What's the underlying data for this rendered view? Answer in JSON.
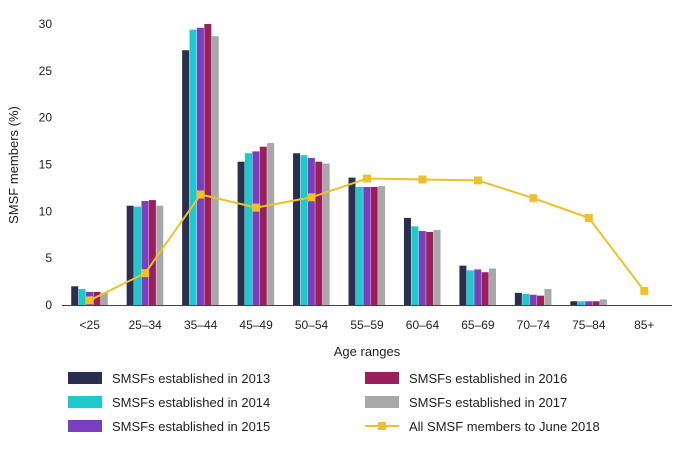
{
  "chart_data": {
    "type": "bar",
    "xlabel": "Age ranges",
    "ylabel": "SMSF members (%)",
    "ylim": [
      0,
      30
    ],
    "yticks": [
      0,
      5,
      10,
      15,
      20,
      25,
      30
    ],
    "grid": false,
    "legend_position": "bottom",
    "categories": [
      "<25",
      "25–34",
      "35–44",
      "45–49",
      "50–54",
      "55–59",
      "60–64",
      "65–69",
      "70–74",
      "75–84",
      "85+"
    ],
    "series": [
      {
        "name": "SMSFs established in 2013",
        "type": "bar",
        "color": "#2b2f4f",
        "values": [
          2.0,
          10.6,
          27.2,
          15.3,
          16.2,
          13.6,
          9.3,
          4.2,
          1.3,
          0.4,
          0
        ]
      },
      {
        "name": "SMSFs established in 2014",
        "type": "bar",
        "color": "#1ec8cc",
        "values": [
          1.7,
          10.5,
          29.4,
          16.2,
          16.0,
          12.6,
          8.4,
          3.7,
          1.2,
          0.4,
          0
        ]
      },
      {
        "name": "SMSFs established in 2015",
        "type": "bar",
        "color": "#7a3fbf",
        "values": [
          1.4,
          11.1,
          29.6,
          16.4,
          15.7,
          12.6,
          7.9,
          3.8,
          1.1,
          0.4,
          0
        ]
      },
      {
        "name": "SMSFs established in 2016",
        "type": "bar",
        "color": "#9a1f5c",
        "values": [
          1.4,
          11.2,
          30.0,
          16.9,
          15.3,
          12.6,
          7.8,
          3.5,
          1.0,
          0.4,
          0
        ]
      },
      {
        "name": "SMSFs established in 2017",
        "type": "bar",
        "color": "#a8a8a8",
        "values": [
          1.3,
          10.6,
          28.7,
          17.3,
          15.1,
          12.7,
          8.0,
          3.9,
          1.7,
          0.6,
          0
        ]
      },
      {
        "name": "All SMSF members to June 2018",
        "type": "line",
        "color": "#ecc12a",
        "values": [
          0.5,
          3.4,
          11.8,
          10.4,
          11.5,
          13.5,
          13.4,
          13.3,
          11.4,
          9.3,
          1.5
        ]
      }
    ]
  }
}
